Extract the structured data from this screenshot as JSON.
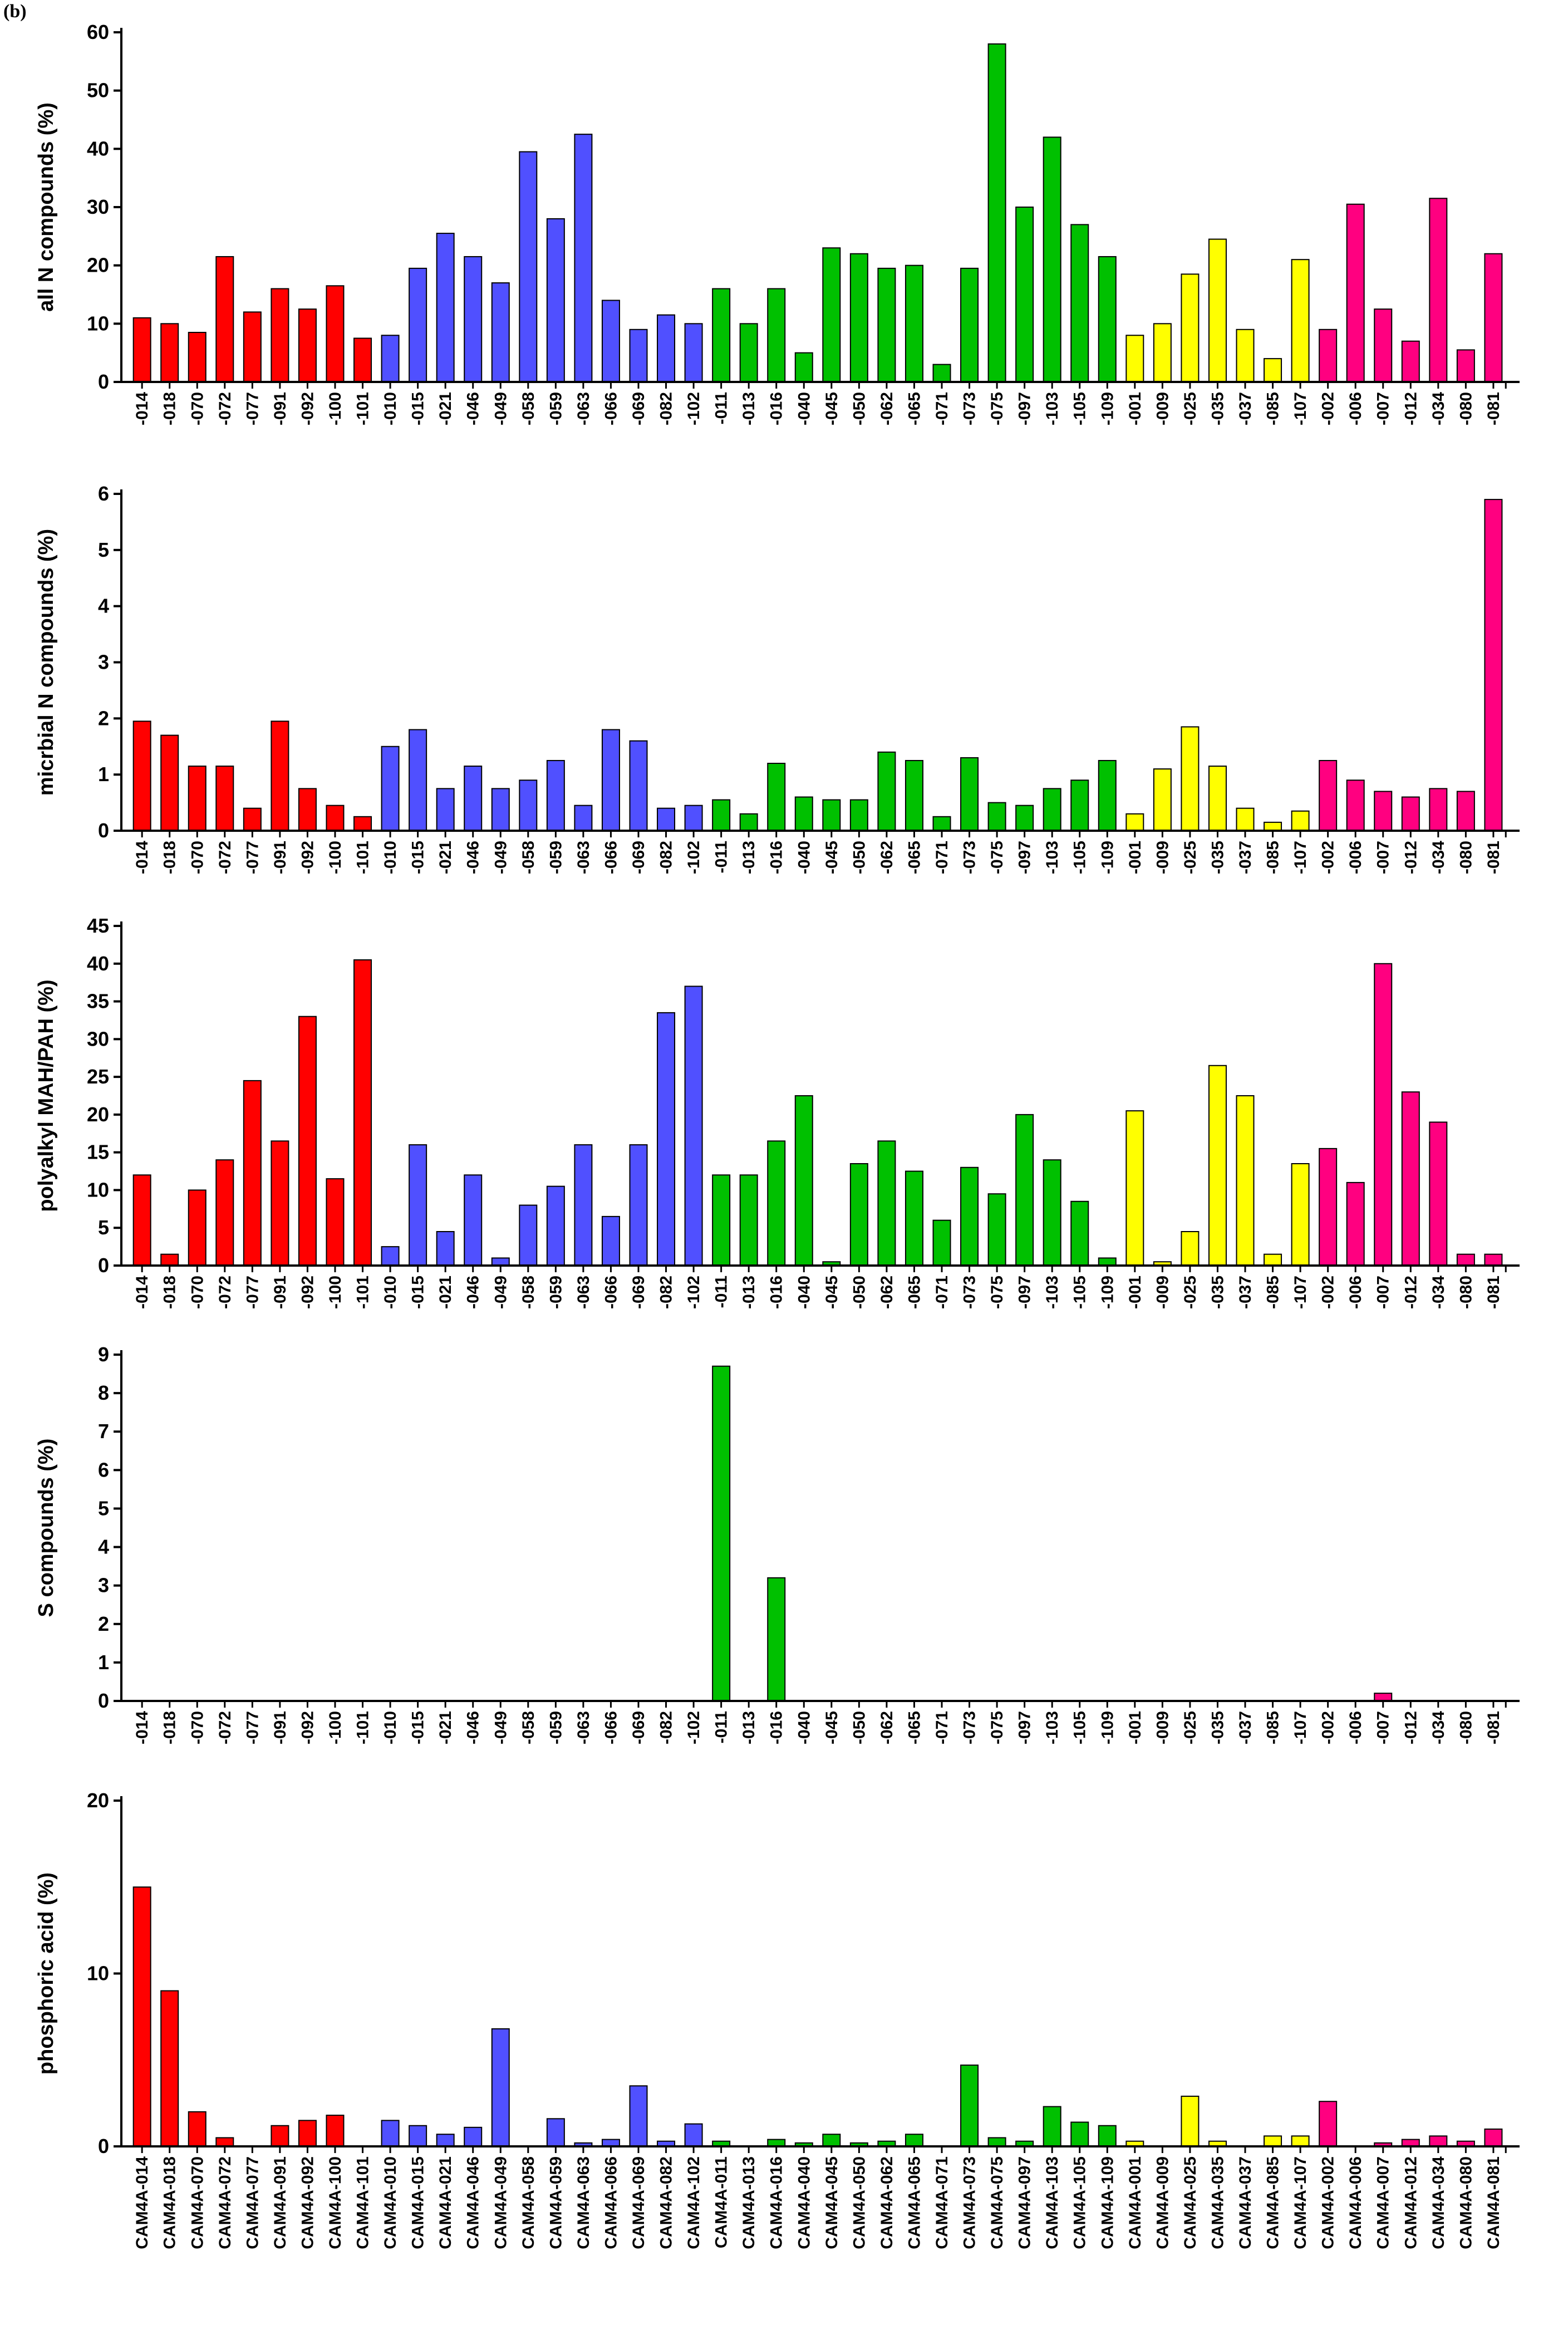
{
  "figure_label": "(b)",
  "colors": {
    "red": "#ff0000",
    "blue": "#5050ff",
    "green": "#00c000",
    "yellow": "#ffff00",
    "pink": "#ff0080"
  },
  "chart_data": [
    {
      "type": "bar",
      "ylabel": "all N compounds (%)",
      "ylim": [
        0,
        60
      ],
      "yticks": [
        0,
        10,
        20,
        30,
        40,
        50,
        60
      ],
      "tick_labels": [
        "-014",
        "-018",
        "-070",
        "-072",
        "-077",
        "-091",
        "-092",
        "-100",
        "-101",
        "-010",
        "-015",
        "-021",
        "-046",
        "-049",
        "-058",
        "-059",
        "-063",
        "-066",
        "-069",
        "-082",
        "-102",
        "-011",
        "-013",
        "-016",
        "-040",
        "-045",
        "-050",
        "-062",
        "-065",
        "-071",
        "-073",
        "-075",
        "-097",
        "-103",
        "-105",
        "-109",
        "-001",
        "-009",
        "-025",
        "-035",
        "-037",
        "-085",
        "-107",
        "-002",
        "-006",
        "-007",
        "-012",
        "-034",
        "-080",
        "-081"
      ],
      "values": [
        11,
        10,
        8.5,
        21.5,
        12,
        16,
        12.5,
        16.5,
        7.5,
        8,
        19.5,
        25.5,
        21.5,
        17,
        39.5,
        28,
        42.5,
        14,
        9,
        11.5,
        10,
        16,
        10,
        16,
        5,
        23,
        22,
        19.5,
        20,
        3,
        19.5,
        58,
        30,
        42,
        27,
        21.5,
        8,
        10,
        18.5,
        24.5,
        9,
        4,
        21,
        9,
        30.5,
        12.5,
        7,
        31.5,
        5.5,
        22
      ]
    },
    {
      "type": "bar",
      "ylabel": "micrbial N compounds (%)",
      "ylim": [
        0,
        6
      ],
      "yticks": [
        0,
        1,
        2,
        3,
        4,
        5,
        6
      ],
      "tick_labels": [
        "-014",
        "-018",
        "-070",
        "-072",
        "-077",
        "-091",
        "-092",
        "-100",
        "-101",
        "-010",
        "-015",
        "-021",
        "-046",
        "-049",
        "-058",
        "-059",
        "-063",
        "-066",
        "-069",
        "-082",
        "-102",
        "-011",
        "-013",
        "-016",
        "-040",
        "-045",
        "-050",
        "-062",
        "-065",
        "-071",
        "-073",
        "-075",
        "-097",
        "-103",
        "-105",
        "-109",
        "-001",
        "-009",
        "-025",
        "-035",
        "-037",
        "-085",
        "-107",
        "-002",
        "-006",
        "-007",
        "-012",
        "-034",
        "-080",
        "-081"
      ],
      "values": [
        1.95,
        1.7,
        1.15,
        1.15,
        0.4,
        1.95,
        0.75,
        0.45,
        0.25,
        1.5,
        1.8,
        0.75,
        1.15,
        0.75,
        0.9,
        1.25,
        0.45,
        1.8,
        1.6,
        0.4,
        0.45,
        0.55,
        0.3,
        1.2,
        0.6,
        0.55,
        0.55,
        1.4,
        1.25,
        0.25,
        1.3,
        0.5,
        0.45,
        0.75,
        0.9,
        1.25,
        0.3,
        1.1,
        1.85,
        1.15,
        0.4,
        0.15,
        0.35,
        1.25,
        0.9,
        0.7,
        0.6,
        0.75,
        0.7,
        5.9
      ]
    },
    {
      "type": "bar",
      "ylabel": "polyalkyl MAH/PAH (%)",
      "ylim": [
        0,
        45
      ],
      "yticks": [
        0,
        5,
        10,
        15,
        20,
        25,
        30,
        35,
        40,
        45
      ],
      "tick_labels": [
        "-014",
        "-018",
        "-070",
        "-072",
        "-077",
        "-091",
        "-092",
        "-100",
        "-101",
        "-010",
        "-015",
        "-021",
        "-046",
        "-049",
        "-058",
        "-059",
        "-063",
        "-066",
        "-069",
        "-082",
        "-102",
        "-011",
        "-013",
        "-016",
        "-040",
        "-045",
        "-050",
        "-062",
        "-065",
        "-071",
        "-073",
        "-075",
        "-097",
        "-103",
        "-105",
        "-109",
        "-001",
        "-009",
        "-025",
        "-035",
        "-037",
        "-085",
        "-107",
        "-002",
        "-006",
        "-007",
        "-012",
        "-034",
        "-080",
        "-081"
      ],
      "values": [
        12,
        1.5,
        10,
        14,
        24.5,
        16.5,
        33,
        11.5,
        40.5,
        2.5,
        16,
        4.5,
        12,
        1,
        8,
        10.5,
        16,
        6.5,
        16,
        33.5,
        37,
        12,
        12,
        16.5,
        22.5,
        0.5,
        13.5,
        16.5,
        12.5,
        6,
        13,
        9.5,
        20,
        14,
        8.5,
        1,
        20.5,
        0.5,
        4.5,
        26.5,
        22.5,
        1.5,
        13.5,
        15.5,
        11,
        40,
        23,
        19,
        1.5,
        1.5
      ]
    },
    {
      "type": "bar",
      "ylabel": "S compounds (%)",
      "ylim": [
        0,
        9
      ],
      "yticks": [
        0,
        1,
        2,
        3,
        4,
        5,
        6,
        7,
        8,
        9
      ],
      "tick_labels": [
        "-014",
        "-018",
        "-070",
        "-072",
        "-077",
        "-091",
        "-092",
        "-100",
        "-101",
        "-010",
        "-015",
        "-021",
        "-046",
        "-049",
        "-058",
        "-059",
        "-063",
        "-066",
        "-069",
        "-082",
        "-102",
        "-011",
        "-013",
        "-016",
        "-040",
        "-045",
        "-050",
        "-062",
        "-065",
        "-071",
        "-073",
        "-075",
        "-097",
        "-103",
        "-105",
        "-109",
        "-001",
        "-009",
        "-025",
        "-035",
        "-037",
        "-085",
        "-107",
        "-002",
        "-006",
        "-007",
        "-012",
        "-034",
        "-080",
        "-081"
      ],
      "values": [
        0,
        0,
        0,
        0,
        0,
        0,
        0,
        0,
        0,
        0,
        0,
        0,
        0,
        0,
        0,
        0,
        0,
        0,
        0,
        0,
        0,
        8.7,
        0,
        3.2,
        0,
        0,
        0,
        0,
        0,
        0,
        0,
        0,
        0,
        0,
        0,
        0,
        0,
        0,
        0,
        0,
        0,
        0,
        0,
        0,
        0,
        0.2,
        0,
        0,
        0,
        0
      ]
    },
    {
      "type": "bar",
      "ylabel": "phosphoric acid (%)",
      "ylim": [
        0,
        20
      ],
      "yticks": [
        0,
        10,
        20
      ],
      "tick_labels": [
        "CAM4A-014",
        "CAM4A-018",
        "CAM4A-070",
        "CAM4A-072",
        "CAM4A-077",
        "CAM4A-091",
        "CAM4A-092",
        "CAM4A-100",
        "CAM4A-101",
        "CAM4A-010",
        "CAM4A-015",
        "CAM4A-021",
        "CAM4A-046",
        "CAM4A-049",
        "CAM4A-058",
        "CAM4A-059",
        "CAM4A-063",
        "CAM4A-066",
        "CAM4A-069",
        "CAM4A-082",
        "CAM4A-102",
        "CAM4A-011",
        "CAM4A-013",
        "CAM4A-016",
        "CAM4A-040",
        "CAM4A-045",
        "CAM4A-050",
        "CAM4A-062",
        "CAM4A-065",
        "CAM4A-071",
        "CAM4A-073",
        "CAM4A-075",
        "CAM4A-097",
        "CAM4A-103",
        "CAM4A-105",
        "CAM4A-109",
        "CAM4A-001",
        "CAM4A-009",
        "CAM4A-025",
        "CAM4A-035",
        "CAM4A-037",
        "CAM4A-085",
        "CAM4A-107",
        "CAM4A-002",
        "CAM4A-006",
        "CAM4A-007",
        "CAM4A-012",
        "CAM4A-034",
        "CAM4A-080",
        "CAM4A-081"
      ],
      "values": [
        15,
        9,
        2,
        0.5,
        0,
        1.2,
        1.5,
        1.8,
        0,
        1.5,
        1.2,
        0.7,
        1.1,
        6.8,
        0,
        1.6,
        0.2,
        0.4,
        3.5,
        0.3,
        1.3,
        0.3,
        0,
        0.4,
        0.2,
        0.7,
        0.2,
        0.3,
        0.7,
        0,
        4.7,
        0.5,
        0.3,
        2.3,
        1.4,
        1.2,
        0.3,
        0,
        2.9,
        0.3,
        0,
        0.6,
        0.6,
        2.6,
        0,
        0.2,
        0.4,
        0.6,
        0.3,
        1
      ]
    }
  ]
}
